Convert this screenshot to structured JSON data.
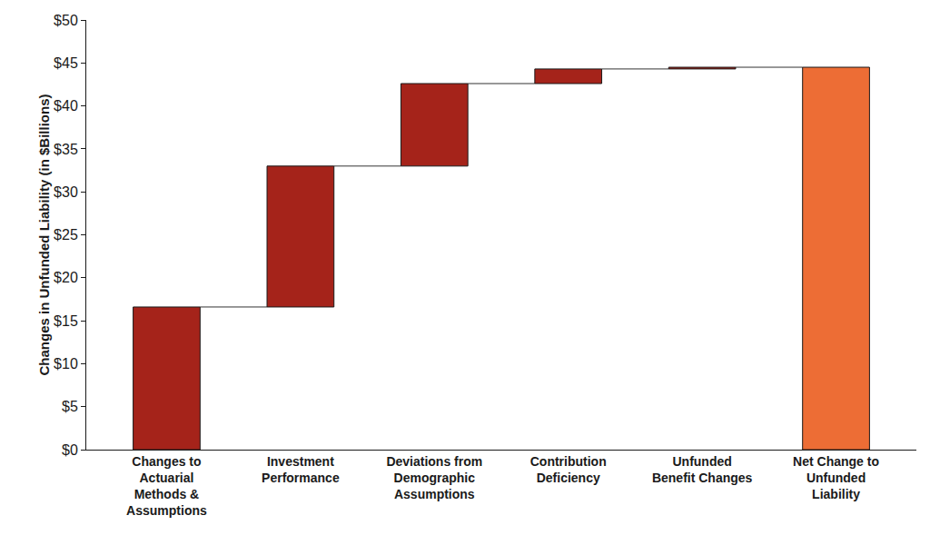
{
  "chart_data": {
    "type": "waterfall",
    "y_label": "Changes in Unfunded Liability (in $Billions)",
    "categories": [
      "Changes to Actuarial Methods & Assumptions",
      "Investment Performance",
      "Deviations from Demographic Assumptions",
      "Contribution Deficiency",
      "Unfunded Benefit Changes",
      "Net Change to Unfunded Liability"
    ],
    "values": [
      16.6,
      16.4,
      9.6,
      1.7,
      0.2,
      44.5
    ],
    "colors": [
      "#a5231a",
      "#a5231a",
      "#a5231a",
      "#a5231a",
      "#a5231a",
      "#ed6d35"
    ],
    "ylim": [
      0,
      50
    ],
    "yticks": [
      {
        "value": 0,
        "label": "$0"
      },
      {
        "value": 5,
        "label": "$5"
      },
      {
        "value": 10,
        "label": "$10"
      },
      {
        "value": 15,
        "label": "$15"
      },
      {
        "value": 20,
        "label": "$20"
      },
      {
        "value": 25,
        "label": "$25"
      },
      {
        "value": 30,
        "label": "$30"
      },
      {
        "value": 35,
        "label": "$35"
      },
      {
        "value": 40,
        "label": "$40"
      },
      {
        "value": 45,
        "label": "$45"
      },
      {
        "value": 50,
        "label": "$50"
      }
    ],
    "grid": false
  }
}
